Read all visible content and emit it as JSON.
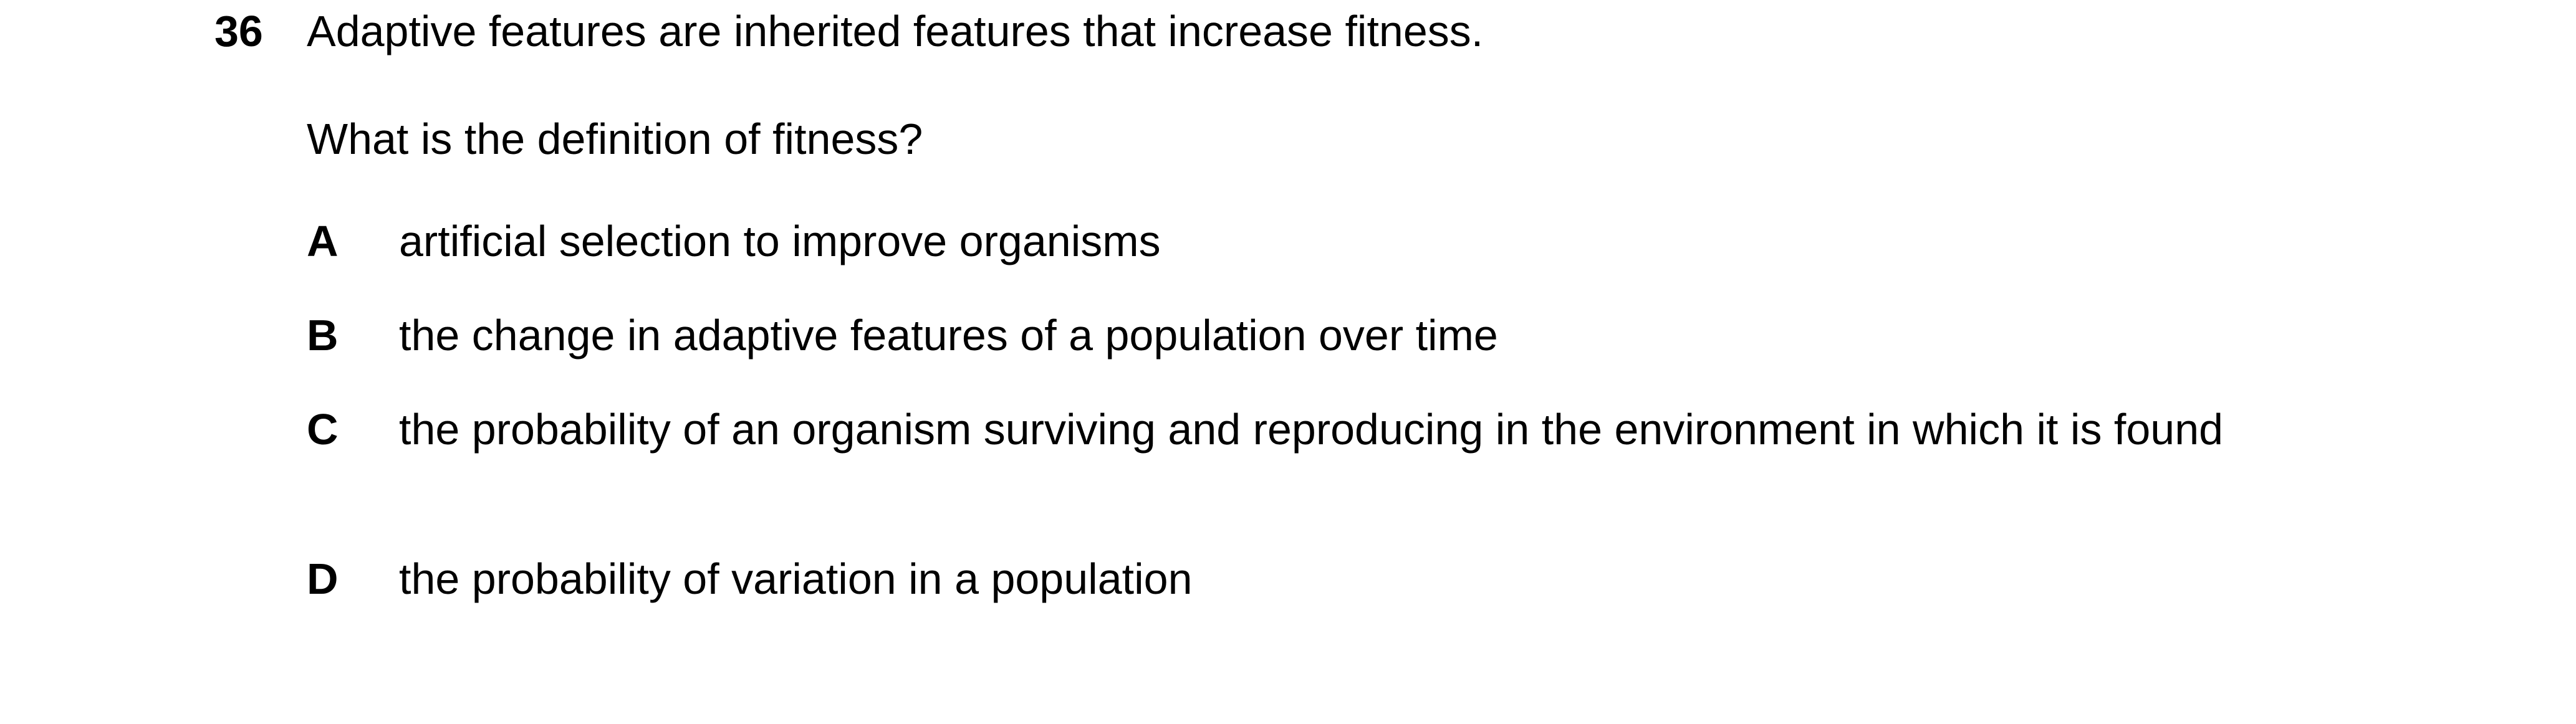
{
  "question": {
    "number": "36",
    "stem": "Adaptive features are inherited features that increase fitness.",
    "prompt": "What is the definition of fitness?",
    "options": [
      {
        "letter": "A",
        "text": "artificial selection to improve organisms"
      },
      {
        "letter": "B",
        "text": "the change in adaptive features of a population over time"
      },
      {
        "letter": "C",
        "text": "the probability of an organism surviving and reproducing in the environment in which it is found"
      },
      {
        "letter": "D",
        "text": "the probability of variation in a population"
      }
    ]
  }
}
